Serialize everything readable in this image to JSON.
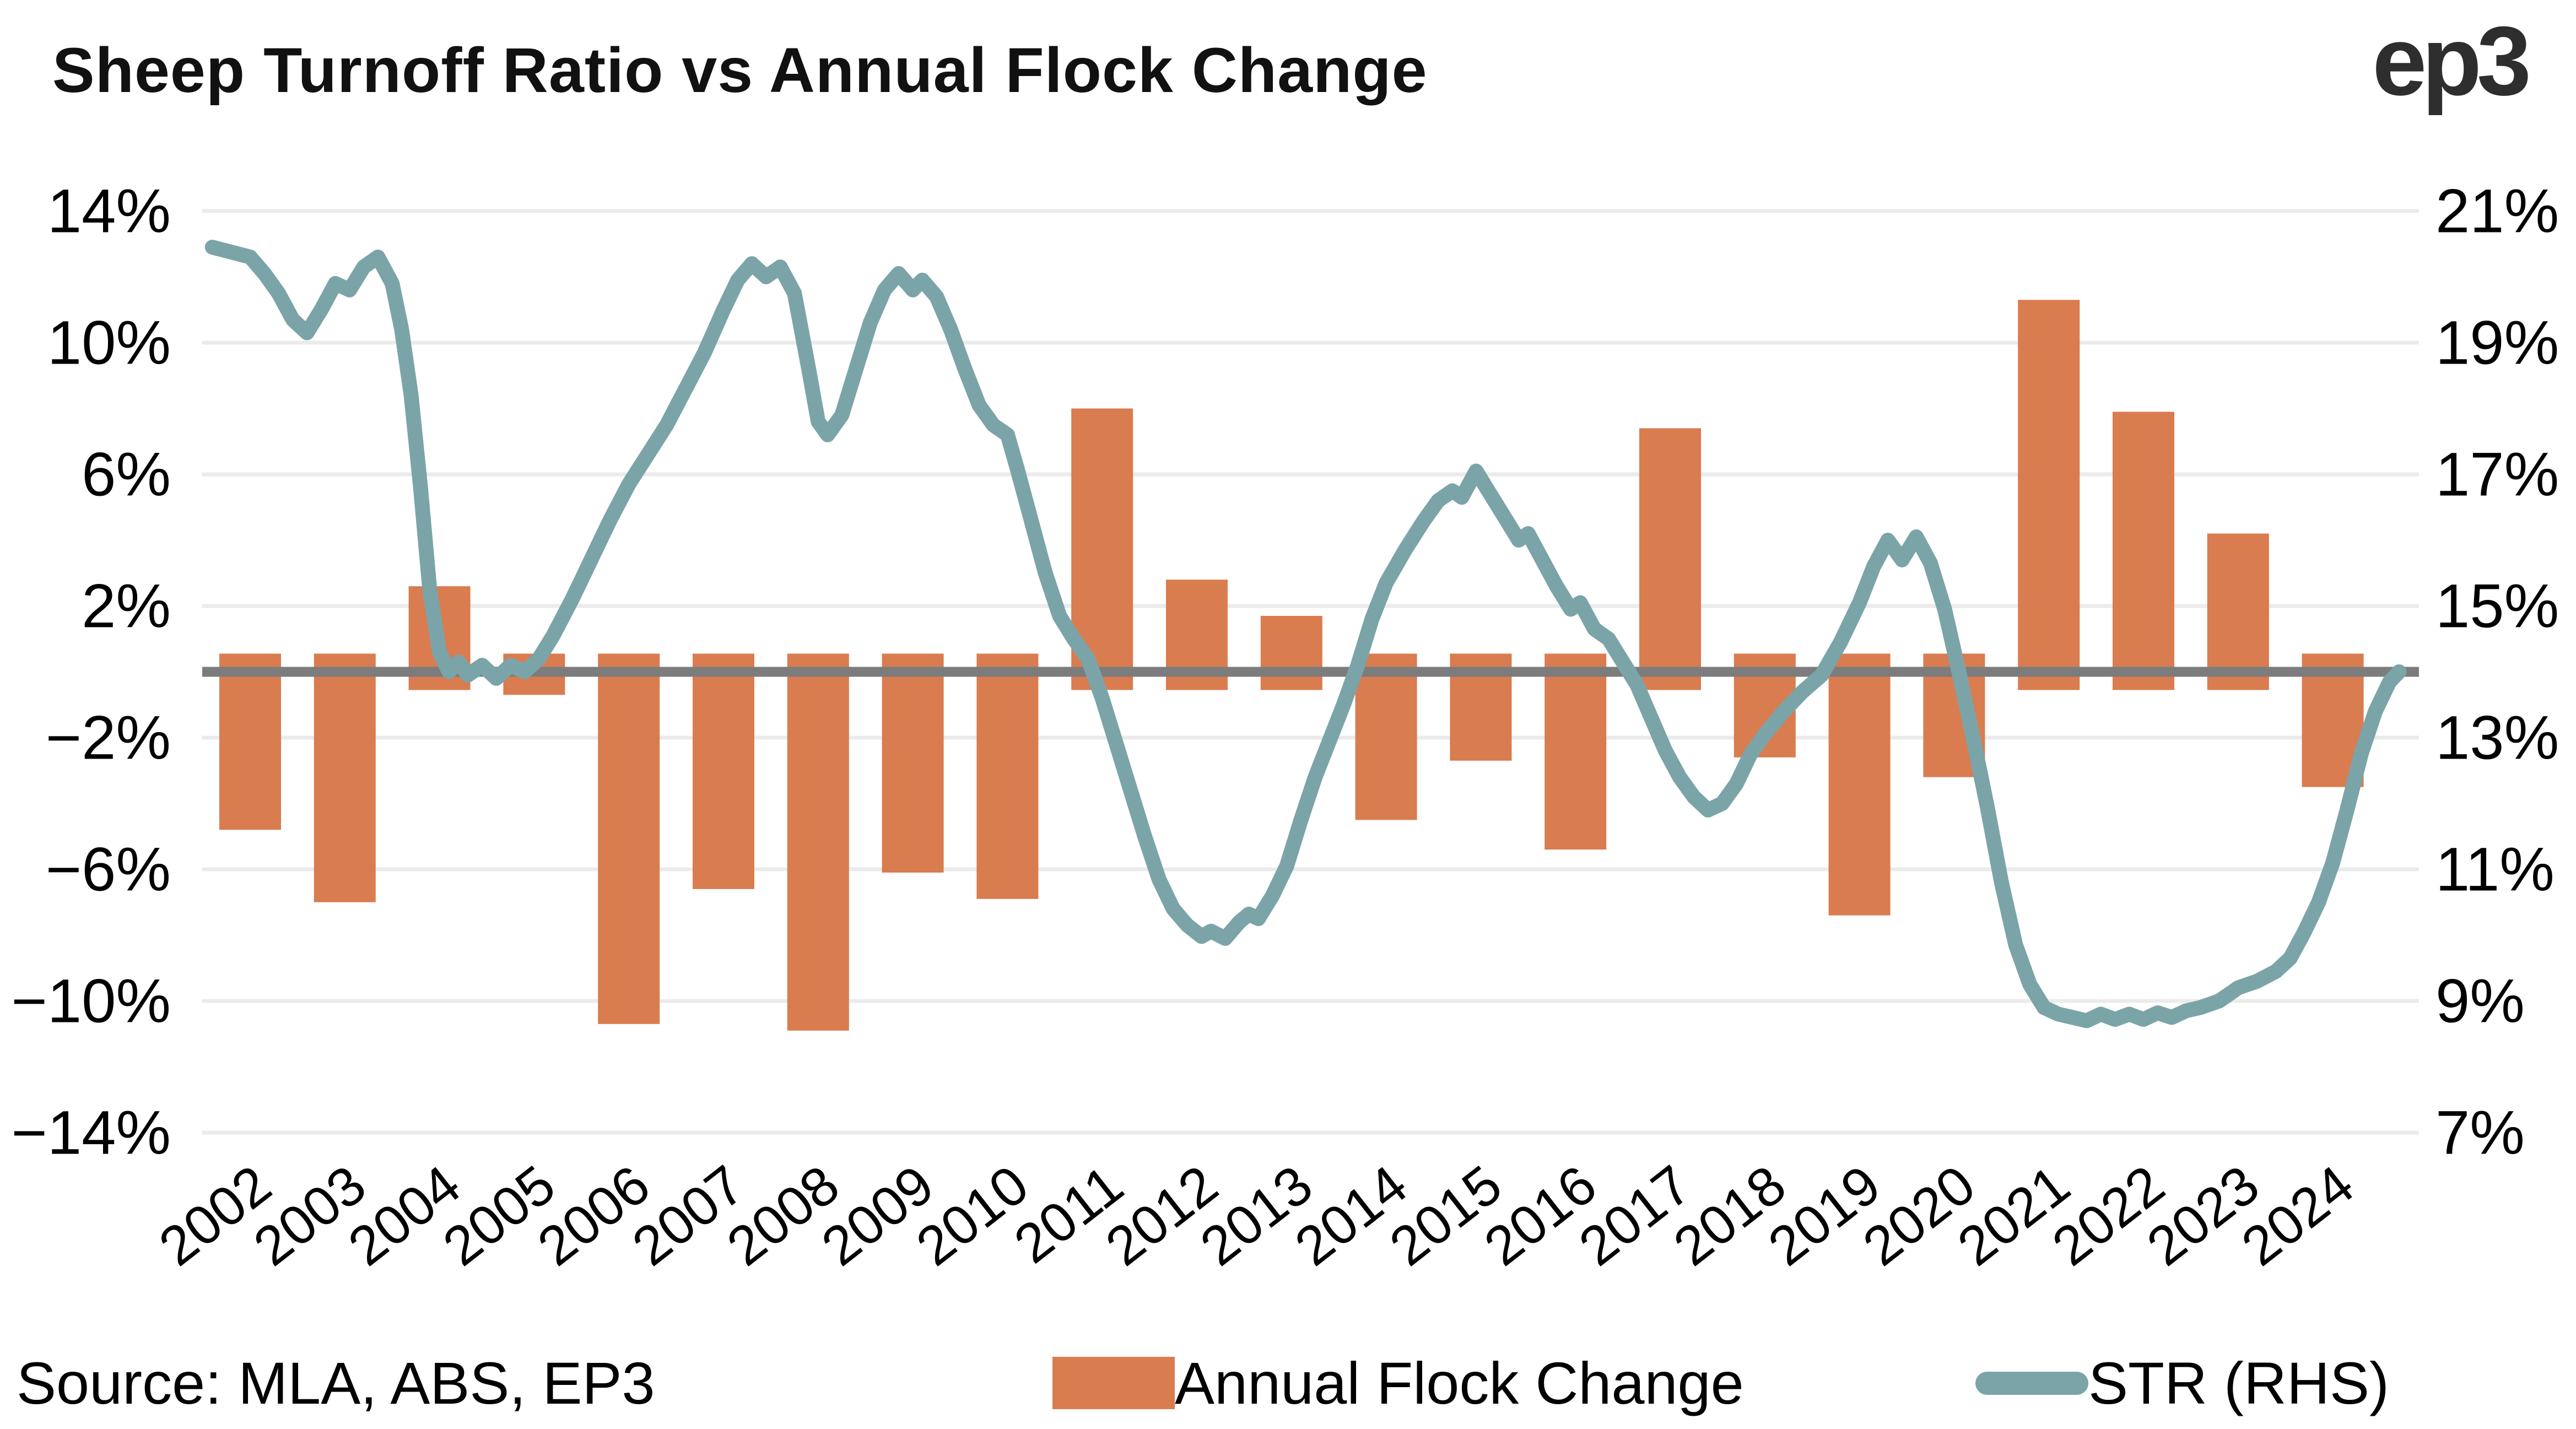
{
  "header": {
    "title": "Sheep Turnoff Ratio vs Annual Flock Change",
    "logo_text": "ep3"
  },
  "footer": {
    "source": "Source: MLA, ABS, EP3"
  },
  "colors": {
    "bar_orange": "#D97C4F",
    "line_teal": "#7BA4A8",
    "zero_line_gray": "#7C7C7C",
    "gridline_gray": "#EBEBEB",
    "text_black": "#000000",
    "logo_gray": "#2E2E2E",
    "background": "#FFFFFF"
  },
  "chart_data": {
    "type": "bar",
    "combo": "bar+line",
    "title": "Sheep Turnoff Ratio vs Annual Flock Change",
    "xlabel": "",
    "ylabel": "",
    "grid": "horizontal-only",
    "legend_position": "bottom",
    "left_axis": {
      "tick_labels": [
        "14%",
        "10%",
        "6%",
        "2%",
        "−2%",
        "−6%",
        "−10%",
        "−14%"
      ],
      "tick_values": [
        14,
        10,
        6,
        2,
        -2,
        -6,
        -10,
        -14
      ],
      "ylim": [
        -14,
        14
      ]
    },
    "right_axis": {
      "tick_labels": [
        "21%",
        "19%",
        "17%",
        "15%",
        "13%",
        "11%",
        "9%",
        "7%"
      ],
      "tick_values": [
        21,
        19,
        17,
        15,
        13,
        11,
        9,
        7
      ],
      "ylim": [
        7,
        21
      ]
    },
    "categories": [
      2002,
      2003,
      2004,
      2005,
      2006,
      2007,
      2008,
      2009,
      2010,
      2011,
      2012,
      2013,
      2014,
      2015,
      2016,
      2017,
      2018,
      2019,
      2020,
      2021,
      2022,
      2023,
      2024
    ],
    "series": [
      {
        "name": "Annual Flock Change",
        "type": "bar",
        "axis": "left",
        "color": "#D97C4F",
        "values": [
          -4.8,
          -7.0,
          2.6,
          -0.7,
          -10.7,
          -6.6,
          -10.9,
          -6.1,
          -6.9,
          8.0,
          2.8,
          1.7,
          -4.5,
          -2.7,
          -5.4,
          7.4,
          -2.6,
          -7.4,
          -3.2,
          11.3,
          7.9,
          4.2,
          -3.5
        ]
      },
      {
        "name": "STR (RHS)",
        "type": "line",
        "axis": "right",
        "color": "#7BA4A8",
        "points": [
          [
            2001.6,
            20.45
          ],
          [
            2002,
            20.3
          ],
          [
            2002.15,
            20.05
          ],
          [
            2002.3,
            19.75
          ],
          [
            2002.45,
            19.35
          ],
          [
            2002.6,
            19.15
          ],
          [
            2002.75,
            19.5
          ],
          [
            2002.9,
            19.9
          ],
          [
            2003.05,
            19.8
          ],
          [
            2003.2,
            20.15
          ],
          [
            2003.35,
            20.3
          ],
          [
            2003.5,
            19.9
          ],
          [
            2003.6,
            19.2
          ],
          [
            2003.7,
            18.2
          ],
          [
            2003.8,
            16.8
          ],
          [
            2003.9,
            15.2
          ],
          [
            2004,
            14.3
          ],
          [
            2004.1,
            14
          ],
          [
            2004.2,
            14.15
          ],
          [
            2004.3,
            13.95
          ],
          [
            2004.45,
            14.1
          ],
          [
            2004.6,
            13.9
          ],
          [
            2004.75,
            14.1
          ],
          [
            2004.9,
            14
          ],
          [
            2005.05,
            14.2
          ],
          [
            2005.2,
            14.55
          ],
          [
            2005.4,
            15.1
          ],
          [
            2005.6,
            15.7
          ],
          [
            2005.8,
            16.3
          ],
          [
            2006,
            16.85
          ],
          [
            2006.2,
            17.3
          ],
          [
            2006.4,
            17.75
          ],
          [
            2006.6,
            18.3
          ],
          [
            2006.8,
            18.85
          ],
          [
            2007,
            19.5
          ],
          [
            2007.15,
            19.95
          ],
          [
            2007.3,
            20.2
          ],
          [
            2007.45,
            20
          ],
          [
            2007.6,
            20.15
          ],
          [
            2007.75,
            19.75
          ],
          [
            2007.9,
            18.6
          ],
          [
            2008,
            17.8
          ],
          [
            2008.1,
            17.6
          ],
          [
            2008.25,
            17.9
          ],
          [
            2008.4,
            18.6
          ],
          [
            2008.55,
            19.3
          ],
          [
            2008.7,
            19.8
          ],
          [
            2008.85,
            20.05
          ],
          [
            2009,
            19.8
          ],
          [
            2009.1,
            19.95
          ],
          [
            2009.25,
            19.7
          ],
          [
            2009.4,
            19.2
          ],
          [
            2009.55,
            18.6
          ],
          [
            2009.7,
            18.05
          ],
          [
            2009.85,
            17.75
          ],
          [
            2010,
            17.6
          ],
          [
            2010.1,
            17.1
          ],
          [
            2010.25,
            16.3
          ],
          [
            2010.4,
            15.5
          ],
          [
            2010.55,
            14.85
          ],
          [
            2010.7,
            14.5
          ],
          [
            2010.85,
            14.2
          ],
          [
            2011,
            13.6
          ],
          [
            2011.15,
            12.9
          ],
          [
            2011.3,
            12.2
          ],
          [
            2011.45,
            11.5
          ],
          [
            2011.6,
            10.85
          ],
          [
            2011.75,
            10.4
          ],
          [
            2011.9,
            10.15
          ],
          [
            2012.05,
            9.98
          ],
          [
            2012.15,
            10.06
          ],
          [
            2012.3,
            9.95
          ],
          [
            2012.45,
            10.2
          ],
          [
            2012.55,
            10.32
          ],
          [
            2012.65,
            10.25
          ],
          [
            2012.8,
            10.6
          ],
          [
            2012.95,
            11.05
          ],
          [
            2013.1,
            11.75
          ],
          [
            2013.25,
            12.4
          ],
          [
            2013.4,
            12.95
          ],
          [
            2013.55,
            13.5
          ],
          [
            2013.7,
            14.1
          ],
          [
            2013.85,
            14.8
          ],
          [
            2014,
            15.35
          ],
          [
            2014.2,
            15.85
          ],
          [
            2014.4,
            16.3
          ],
          [
            2014.55,
            16.6
          ],
          [
            2014.7,
            16.75
          ],
          [
            2014.8,
            16.65
          ],
          [
            2014.95,
            17.05
          ],
          [
            2015.1,
            16.7
          ],
          [
            2015.25,
            16.35
          ],
          [
            2015.4,
            16
          ],
          [
            2015.5,
            16.1
          ],
          [
            2015.65,
            15.7
          ],
          [
            2015.8,
            15.3
          ],
          [
            2015.95,
            14.95
          ],
          [
            2016.05,
            15.05
          ],
          [
            2016.2,
            14.65
          ],
          [
            2016.35,
            14.5
          ],
          [
            2016.5,
            14.15
          ],
          [
            2016.65,
            13.8
          ],
          [
            2016.8,
            13.3
          ],
          [
            2016.95,
            12.8
          ],
          [
            2017.1,
            12.4
          ],
          [
            2017.25,
            12.1
          ],
          [
            2017.4,
            11.9
          ],
          [
            2017.55,
            12
          ],
          [
            2017.7,
            12.3
          ],
          [
            2017.85,
            12.75
          ],
          [
            2018,
            13.05
          ],
          [
            2018.2,
            13.4
          ],
          [
            2018.4,
            13.7
          ],
          [
            2018.6,
            13.95
          ],
          [
            2018.8,
            14.45
          ],
          [
            2019,
            15.05
          ],
          [
            2019.15,
            15.6
          ],
          [
            2019.3,
            16
          ],
          [
            2019.45,
            15.7
          ],
          [
            2019.6,
            16.05
          ],
          [
            2019.75,
            15.65
          ],
          [
            2019.9,
            14.95
          ],
          [
            2020.05,
            14
          ],
          [
            2020.2,
            13
          ],
          [
            2020.35,
            11.95
          ],
          [
            2020.5,
            10.8
          ],
          [
            2020.65,
            9.85
          ],
          [
            2020.8,
            9.25
          ],
          [
            2020.95,
            8.9
          ],
          [
            2021.1,
            8.8
          ],
          [
            2021.25,
            8.75
          ],
          [
            2021.4,
            8.7
          ],
          [
            2021.55,
            8.8
          ],
          [
            2021.7,
            8.72
          ],
          [
            2021.85,
            8.8
          ],
          [
            2022,
            8.72
          ],
          [
            2022.15,
            8.82
          ],
          [
            2022.3,
            8.75
          ],
          [
            2022.45,
            8.85
          ],
          [
            2022.6,
            8.9
          ],
          [
            2022.8,
            9
          ],
          [
            2023,
            9.2
          ],
          [
            2023.2,
            9.3
          ],
          [
            2023.4,
            9.45
          ],
          [
            2023.55,
            9.65
          ],
          [
            2023.7,
            10.05
          ],
          [
            2023.85,
            10.5
          ],
          [
            2024,
            11.1
          ],
          [
            2024.15,
            11.9
          ],
          [
            2024.3,
            12.75
          ],
          [
            2024.45,
            13.4
          ],
          [
            2024.6,
            13.85
          ],
          [
            2024.7,
            14
          ]
        ]
      }
    ],
    "legend": {
      "items": [
        {
          "label": "Annual Flock Change",
          "swatch": "bar",
          "color": "#D97C4F"
        },
        {
          "label": "STR (RHS)",
          "swatch": "line",
          "color": "#7BA4A8"
        }
      ]
    }
  }
}
